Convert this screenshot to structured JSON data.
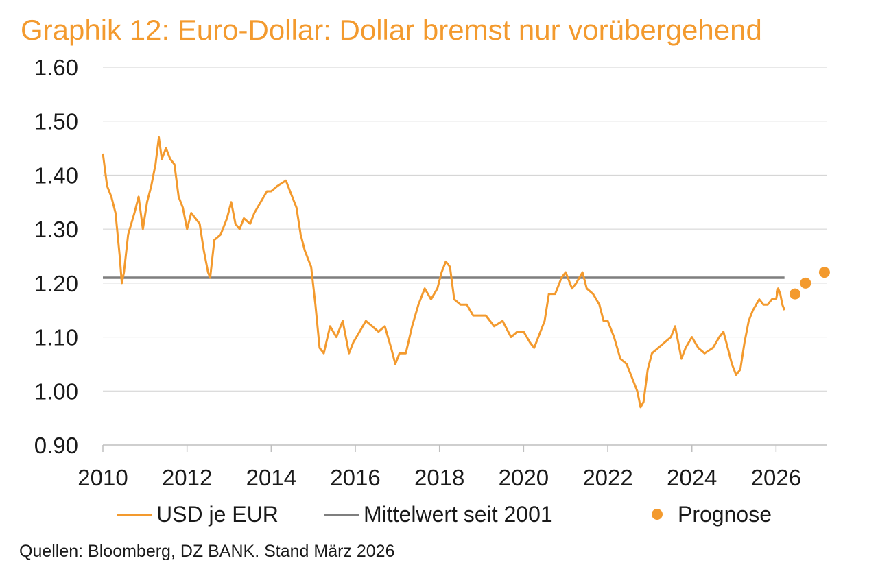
{
  "title": "Graphik 12: Euro-Dollar: Dollar bremst nur vorübergehend",
  "source": "Quellen: Bloomberg, DZ BANK. Stand März 2026",
  "colors": {
    "series": "#F39A2E",
    "mean": "#7F7F7F",
    "forecast": "#F39A2E",
    "grid": "#D0D0D0",
    "axis": "#BFBFBF",
    "text": "#1a1a1a"
  },
  "chart_data": {
    "type": "line",
    "title": "Graphik 12: Euro-Dollar: Dollar bremst nur vorübergehend",
    "xlabel": "",
    "ylabel": "",
    "xlim": [
      2010,
      2027.2
    ],
    "ylim": [
      0.9,
      1.6
    ],
    "x_ticks": [
      "2010",
      "2012",
      "2014",
      "2016",
      "2018",
      "2020",
      "2022",
      "2024",
      "2026"
    ],
    "y_ticks": [
      "0.90",
      "1.00",
      "1.10",
      "1.20",
      "1.30",
      "1.40",
      "1.50",
      "1.60"
    ],
    "grid": "horizontal",
    "legend_position": "bottom",
    "series": [
      {
        "name": "USD je EUR",
        "points": [
          [
            2010.0,
            1.44
          ],
          [
            2010.1,
            1.38
          ],
          [
            2010.2,
            1.36
          ],
          [
            2010.3,
            1.33
          ],
          [
            2010.4,
            1.25
          ],
          [
            2010.45,
            1.2
          ],
          [
            2010.5,
            1.22
          ],
          [
            2010.6,
            1.29
          ],
          [
            2010.75,
            1.33
          ],
          [
            2010.85,
            1.36
          ],
          [
            2010.95,
            1.3
          ],
          [
            2011.05,
            1.35
          ],
          [
            2011.15,
            1.38
          ],
          [
            2011.25,
            1.42
          ],
          [
            2011.33,
            1.47
          ],
          [
            2011.4,
            1.43
          ],
          [
            2011.5,
            1.45
          ],
          [
            2011.6,
            1.43
          ],
          [
            2011.7,
            1.42
          ],
          [
            2011.8,
            1.36
          ],
          [
            2011.9,
            1.34
          ],
          [
            2012.0,
            1.3
          ],
          [
            2012.1,
            1.33
          ],
          [
            2012.2,
            1.32
          ],
          [
            2012.3,
            1.31
          ],
          [
            2012.4,
            1.26
          ],
          [
            2012.5,
            1.22
          ],
          [
            2012.55,
            1.21
          ],
          [
            2012.65,
            1.28
          ],
          [
            2012.8,
            1.29
          ],
          [
            2012.95,
            1.32
          ],
          [
            2013.05,
            1.35
          ],
          [
            2013.15,
            1.31
          ],
          [
            2013.25,
            1.3
          ],
          [
            2013.35,
            1.32
          ],
          [
            2013.5,
            1.31
          ],
          [
            2013.6,
            1.33
          ],
          [
            2013.75,
            1.35
          ],
          [
            2013.9,
            1.37
          ],
          [
            2014.0,
            1.37
          ],
          [
            2014.15,
            1.38
          ],
          [
            2014.35,
            1.39
          ],
          [
            2014.5,
            1.36
          ],
          [
            2014.6,
            1.34
          ],
          [
            2014.7,
            1.29
          ],
          [
            2014.8,
            1.26
          ],
          [
            2014.95,
            1.23
          ],
          [
            2015.05,
            1.16
          ],
          [
            2015.15,
            1.08
          ],
          [
            2015.25,
            1.07
          ],
          [
            2015.4,
            1.12
          ],
          [
            2015.55,
            1.1
          ],
          [
            2015.7,
            1.13
          ],
          [
            2015.85,
            1.07
          ],
          [
            2015.95,
            1.09
          ],
          [
            2016.1,
            1.11
          ],
          [
            2016.25,
            1.13
          ],
          [
            2016.4,
            1.12
          ],
          [
            2016.55,
            1.11
          ],
          [
            2016.7,
            1.12
          ],
          [
            2016.85,
            1.08
          ],
          [
            2016.95,
            1.05
          ],
          [
            2017.05,
            1.07
          ],
          [
            2017.2,
            1.07
          ],
          [
            2017.35,
            1.12
          ],
          [
            2017.5,
            1.16
          ],
          [
            2017.65,
            1.19
          ],
          [
            2017.8,
            1.17
          ],
          [
            2017.95,
            1.19
          ],
          [
            2018.05,
            1.22
          ],
          [
            2018.15,
            1.24
          ],
          [
            2018.25,
            1.23
          ],
          [
            2018.35,
            1.17
          ],
          [
            2018.5,
            1.16
          ],
          [
            2018.65,
            1.16
          ],
          [
            2018.8,
            1.14
          ],
          [
            2018.95,
            1.14
          ],
          [
            2019.1,
            1.14
          ],
          [
            2019.3,
            1.12
          ],
          [
            2019.5,
            1.13
          ],
          [
            2019.7,
            1.1
          ],
          [
            2019.85,
            1.11
          ],
          [
            2020.0,
            1.11
          ],
          [
            2020.15,
            1.09
          ],
          [
            2020.25,
            1.08
          ],
          [
            2020.35,
            1.1
          ],
          [
            2020.5,
            1.13
          ],
          [
            2020.6,
            1.18
          ],
          [
            2020.75,
            1.18
          ],
          [
            2020.9,
            1.21
          ],
          [
            2021.0,
            1.22
          ],
          [
            2021.15,
            1.19
          ],
          [
            2021.25,
            1.2
          ],
          [
            2021.4,
            1.22
          ],
          [
            2021.5,
            1.19
          ],
          [
            2021.65,
            1.18
          ],
          [
            2021.8,
            1.16
          ],
          [
            2021.9,
            1.13
          ],
          [
            2022.0,
            1.13
          ],
          [
            2022.15,
            1.1
          ],
          [
            2022.3,
            1.06
          ],
          [
            2022.45,
            1.05
          ],
          [
            2022.6,
            1.02
          ],
          [
            2022.7,
            1.0
          ],
          [
            2022.78,
            0.97
          ],
          [
            2022.85,
            0.98
          ],
          [
            2022.95,
            1.04
          ],
          [
            2023.05,
            1.07
          ],
          [
            2023.2,
            1.08
          ],
          [
            2023.35,
            1.09
          ],
          [
            2023.5,
            1.1
          ],
          [
            2023.6,
            1.12
          ],
          [
            2023.75,
            1.06
          ],
          [
            2023.85,
            1.08
          ],
          [
            2024.0,
            1.1
          ],
          [
            2024.15,
            1.08
          ],
          [
            2024.3,
            1.07
          ],
          [
            2024.5,
            1.08
          ],
          [
            2024.65,
            1.1
          ],
          [
            2024.75,
            1.11
          ],
          [
            2024.85,
            1.08
          ],
          [
            2024.95,
            1.05
          ],
          [
            2025.05,
            1.03
          ],
          [
            2025.15,
            1.04
          ],
          [
            2025.25,
            1.09
          ],
          [
            2025.35,
            1.13
          ],
          [
            2025.45,
            1.15
          ],
          [
            2025.6,
            1.17
          ],
          [
            2025.7,
            1.16
          ],
          [
            2025.8,
            1.16
          ],
          [
            2025.9,
            1.17
          ],
          [
            2026.0,
            1.17
          ],
          [
            2026.05,
            1.19
          ],
          [
            2026.1,
            1.18
          ],
          [
            2026.15,
            1.16
          ],
          [
            2026.2,
            1.15
          ]
        ]
      },
      {
        "name": "Mittelwert seit 2001",
        "points": [
          [
            2010.0,
            1.21
          ],
          [
            2026.2,
            1.21
          ]
        ]
      },
      {
        "name": "Prognose",
        "points": [
          [
            2026.45,
            1.18
          ],
          [
            2026.7,
            1.2
          ],
          [
            2027.15,
            1.22
          ]
        ]
      }
    ]
  }
}
